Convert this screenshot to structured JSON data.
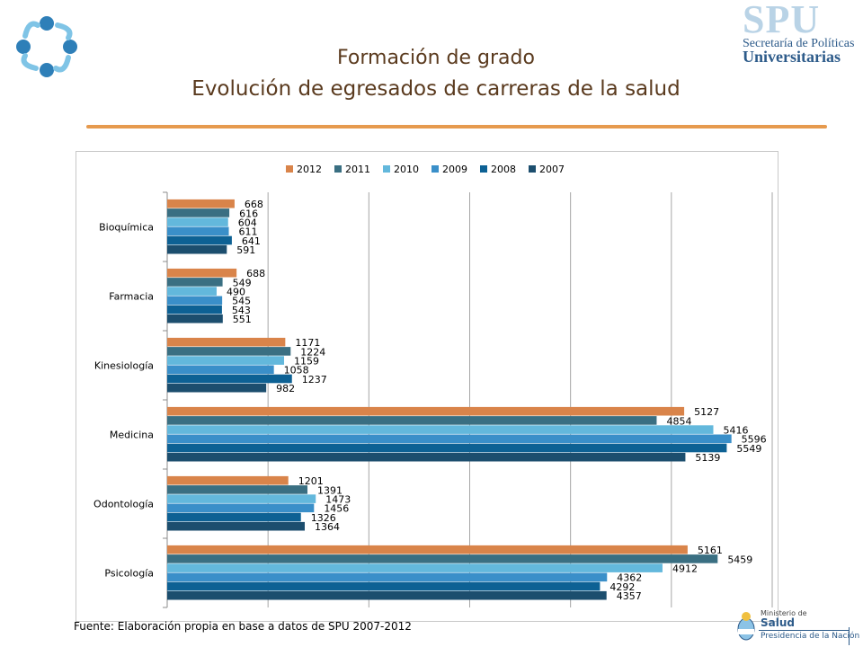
{
  "header": {
    "title_line1": "Formación de grado",
    "title_line2": "Evolución de egresados de carreras de la salud"
  },
  "spu_logo": {
    "big": "SPU",
    "line1": "Secretaría de Políticas",
    "line2": "Universitarias"
  },
  "footer": {
    "source": "Fuente: Elaboración propia en base a datos de SPU 2007-2012"
  },
  "ministry_logo": {
    "line1": "Ministerio de",
    "line2": "Salud",
    "line3": "Presidencia de la Nación"
  },
  "chart_data": {
    "type": "bar",
    "orientation": "horizontal",
    "categories": [
      "Bioquímica",
      "Farmacia",
      "Kinesiología",
      "Medicina",
      "Odontología",
      "Psicología"
    ],
    "series": [
      {
        "name": "2012",
        "color": "#d9844a",
        "values": [
          668,
          688,
          1171,
          5127,
          1201,
          5161
        ]
      },
      {
        "name": "2011",
        "color": "#3a6f82",
        "values": [
          616,
          549,
          1224,
          4854,
          1391,
          5459
        ]
      },
      {
        "name": "2010",
        "color": "#63b8dc",
        "values": [
          604,
          490,
          1159,
          5416,
          1473,
          4912
        ]
      },
      {
        "name": "2009",
        "color": "#3a8fc9",
        "values": [
          611,
          545,
          1058,
          5596,
          1456,
          4362
        ]
      },
      {
        "name": "2008",
        "color": "#0d6194",
        "values": [
          641,
          543,
          1237,
          5549,
          1326,
          4292
        ]
      },
      {
        "name": "2007",
        "color": "#1c4e6e",
        "values": [
          591,
          551,
          982,
          5139,
          1364,
          4357
        ]
      }
    ],
    "xlim": [
      0,
      6000
    ],
    "grid": true,
    "legend_position": "top"
  }
}
